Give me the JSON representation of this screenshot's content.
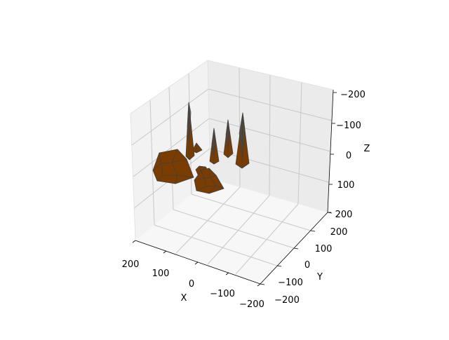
{
  "chart_data": {
    "type": "3d-scatter-polyhedra",
    "title": "",
    "xlabel": "X",
    "ylabel": "Y",
    "zlabel": "Z",
    "xlim": [
      -200,
      200
    ],
    "ylim": [
      -200,
      200
    ],
    "zlim": [
      -200,
      200
    ],
    "z_axis_inverted": true,
    "xticks": [
      "200",
      "100",
      "0",
      "−100",
      "−200"
    ],
    "yticks": [
      "−200",
      "−100",
      "0",
      "100",
      "200"
    ],
    "zticks": [
      "−200",
      "−100",
      "0",
      "100",
      "200"
    ],
    "grid": true,
    "colors": {
      "face": "#7a3c00",
      "edge": "#404040",
      "pane_left": "#f2f2f2",
      "pane_right": "#ebebeb",
      "pane_floor": "#f7f7f7",
      "grid": "#c8c8c8"
    },
    "objects": [
      {
        "name": "cone-1",
        "shape": "cone"
      },
      {
        "name": "cone-2",
        "shape": "cone"
      },
      {
        "name": "cone-3",
        "shape": "cone"
      },
      {
        "name": "cone-4",
        "shape": "cone"
      },
      {
        "name": "small-pyramid",
        "shape": "pyramid"
      },
      {
        "name": "large-polyhedron",
        "shape": "polyhedron"
      },
      {
        "name": "medium-polyhedron",
        "shape": "polyhedron"
      },
      {
        "name": "small-polyhedron",
        "shape": "polyhedron"
      }
    ]
  }
}
